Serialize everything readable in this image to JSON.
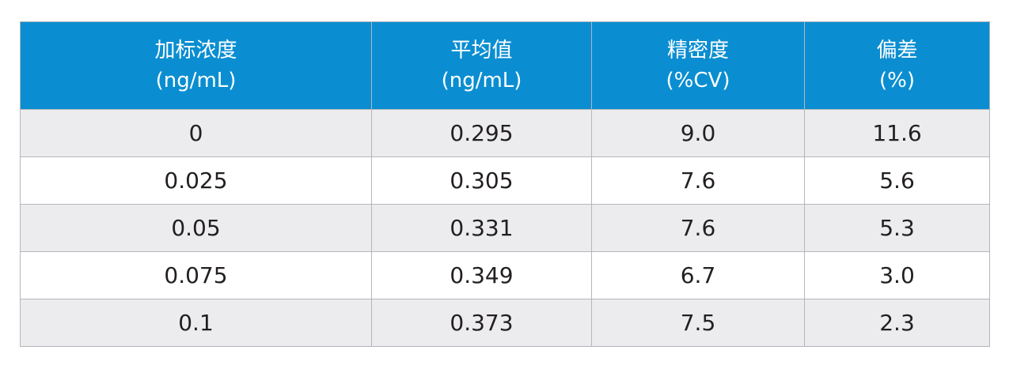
{
  "table": {
    "header": [
      [
        "加标浓度",
        "(ng/mL)"
      ],
      [
        "平均值",
        "(ng/mL)"
      ],
      [
        "精密度",
        "(%CV)"
      ],
      [
        "偏差",
        "(%)"
      ]
    ],
    "rows": [
      [
        "0",
        "0.295",
        "9.0",
        "11.6"
      ],
      [
        "0.025",
        "0.305",
        "7.6",
        "5.6"
      ],
      [
        "0.05",
        "0.331",
        "7.6",
        "5.3"
      ],
      [
        "0.075",
        "0.349",
        "6.7",
        "3.0"
      ],
      [
        "0.1",
        "0.373",
        "7.5",
        "2.3"
      ]
    ]
  }
}
